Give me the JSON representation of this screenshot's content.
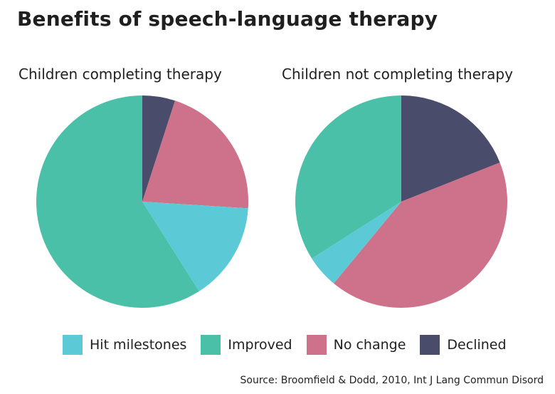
{
  "title": "Benefits of speech-language therapy",
  "source": "Source: Broomfield & Dodd, 2010, Int J Lang Commun Disord",
  "colors": {
    "hit_milestones": "#5ccad6",
    "improved": "#4bc0a9",
    "no_change": "#cd728a",
    "declined": "#4a4c6c"
  },
  "legend": [
    "Hit milestones",
    "Improved",
    "No change",
    "Declined"
  ],
  "chart_data": [
    {
      "type": "pie",
      "title": "Children completing therapy",
      "slices": [
        {
          "label": "Declined",
          "value": 5
        },
        {
          "label": "No change",
          "value": 21
        },
        {
          "label": "Hit milestones",
          "value": 15
        },
        {
          "label": "Improved",
          "value": 59
        }
      ]
    },
    {
      "type": "pie",
      "title": "Children not completing therapy",
      "slices": [
        {
          "label": "Declined",
          "value": 19
        },
        {
          "label": "No change",
          "value": 42
        },
        {
          "label": "Hit milestones",
          "value": 5
        },
        {
          "label": "Improved",
          "value": 34
        }
      ]
    }
  ]
}
